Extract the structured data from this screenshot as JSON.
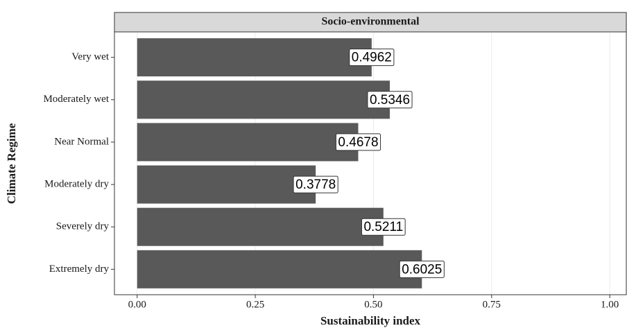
{
  "chart_data": {
    "type": "bar",
    "orientation": "horizontal",
    "facet_title": "Socio-environmental",
    "x_label": "Sustainability index",
    "y_label": "Climate Regime",
    "categories": [
      "Very wet",
      "Moderately wet",
      "Near Normal",
      "Moderately dry",
      "Severely dry",
      "Extremely dry"
    ],
    "values": [
      0.4962,
      0.5346,
      0.4678,
      0.3778,
      0.5211,
      0.6025
    ],
    "color": "#595959",
    "xlim": [
      -0.048,
      1.035
    ],
    "xticks": [
      {
        "value": 0,
        "label": "0.00"
      },
      {
        "value": 0.25,
        "label": "0.25"
      },
      {
        "value": 0.5,
        "label": "0.50"
      },
      {
        "value": 0.75,
        "label": "0.75"
      },
      {
        "value": 1,
        "label": "1.00"
      }
    ],
    "grid": true
  }
}
